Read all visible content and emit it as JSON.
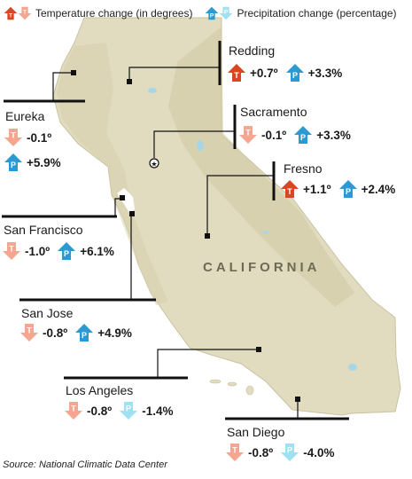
{
  "legend": {
    "temp_label": "Temperature change (in degrees)",
    "precip_label": "Precipitation change (percentage)"
  },
  "state_label": "CALIFORNIA",
  "source": "Source: National Climatic Data Center",
  "icon_letters": {
    "temperature": "T",
    "precipitation": "P"
  },
  "colors": {
    "temp_increase": "#d9461f",
    "temp_decrease": "#f4a690",
    "precip_increase": "#2b9ad3",
    "precip_decrease": "#9fe0f2",
    "land": "#e1dcc0",
    "ocean": "#ffffff"
  },
  "cities": [
    {
      "name": "Redding",
      "temp": "+0.7º",
      "temp_dir": "up",
      "precip": "+3.3%",
      "precip_dir": "up"
    },
    {
      "name": "Eureka",
      "temp": "-0.1º",
      "temp_dir": "down",
      "precip": "+5.9%",
      "precip_dir": "up"
    },
    {
      "name": "Sacramento",
      "temp": "-0.1º",
      "temp_dir": "down",
      "precip": "+3.3%",
      "precip_dir": "up"
    },
    {
      "name": "Fresno",
      "temp": "+1.1º",
      "temp_dir": "up",
      "precip": "+2.4%",
      "precip_dir": "up"
    },
    {
      "name": "San Francisco",
      "temp": "-1.0º",
      "temp_dir": "down",
      "precip": "+6.1%",
      "precip_dir": "up"
    },
    {
      "name": "San Jose",
      "temp": "-0.8º",
      "temp_dir": "down",
      "precip": "+4.9%",
      "precip_dir": "up"
    },
    {
      "name": "Los Angeles",
      "temp": "-0.8º",
      "temp_dir": "down",
      "precip": "-1.4%",
      "precip_dir": "down"
    },
    {
      "name": "San Diego",
      "temp": "-0.8º",
      "temp_dir": "down",
      "precip": "-4.0%",
      "precip_dir": "down"
    }
  ]
}
